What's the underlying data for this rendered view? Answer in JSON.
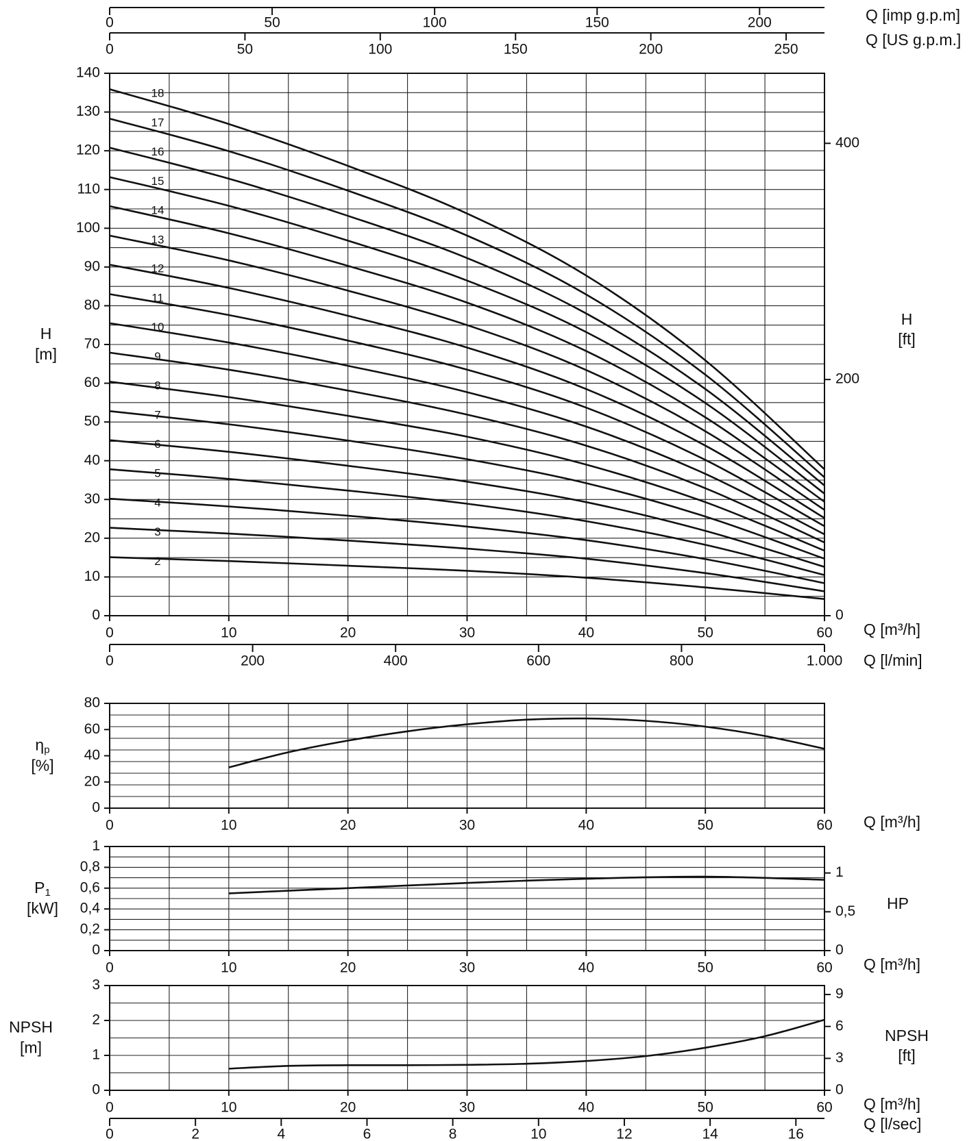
{
  "chart_data": [
    {
      "id": "head",
      "type": "line",
      "x_unit": "Q [m³/h]",
      "xlim": [
        0,
        60
      ],
      "ylim": [
        0,
        140
      ],
      "ylabel_line1": "H",
      "ylabel_line2": "[m]",
      "y2label_line1": "H",
      "y2label_line2": "[ft]",
      "x_ticks": [
        "0",
        "10",
        "20",
        "30",
        "40",
        "50",
        "60"
      ],
      "y_ticks": [
        "0",
        "10",
        "20",
        "30",
        "40",
        "50",
        "60",
        "70",
        "80",
        "90",
        "100",
        "110",
        "120",
        "130",
        "140"
      ],
      "y2_ticks": [
        "0",
        "200",
        "400",
        "600",
        "800"
      ],
      "top_axis_1": {
        "label": "Q [imp g.p.m]",
        "ticks": [
          "0",
          "50",
          "100",
          "150",
          "200"
        ]
      },
      "top_axis_2": {
        "label": "Q [US g.p.m.]",
        "ticks": [
          "0",
          "50",
          "100",
          "150",
          "200",
          "250"
        ]
      },
      "bottom_axis_2": {
        "label": "Q [l/min]",
        "ticks": [
          "0",
          "200",
          "400",
          "600",
          "800",
          "1.000"
        ]
      },
      "x": [
        0,
        10,
        20,
        30,
        40,
        50,
        60
      ],
      "series": [
        {
          "name": "2",
          "values": [
            15.1,
            14.1,
            12.9,
            11.6,
            9.8,
            7.3,
            4.3
          ]
        },
        {
          "name": "3",
          "values": [
            22.7,
            21.2,
            19.4,
            17.3,
            14.7,
            11.0,
            6.3
          ]
        },
        {
          "name": "4",
          "values": [
            30.2,
            28.2,
            25.8,
            23.0,
            19.5,
            14.6,
            8.4
          ]
        },
        {
          "name": "5",
          "values": [
            37.8,
            35.3,
            32.3,
            28.9,
            24.4,
            18.3,
            10.5
          ]
        },
        {
          "name": "6",
          "values": [
            45.3,
            42.3,
            38.7,
            34.6,
            29.3,
            21.9,
            12.6
          ]
        },
        {
          "name": "7",
          "values": [
            52.8,
            49.4,
            45.2,
            40.4,
            34.2,
            25.6,
            14.7
          ]
        },
        {
          "name": "8",
          "values": [
            60.4,
            56.4,
            51.6,
            46.2,
            39.0,
            29.3,
            16.8
          ]
        },
        {
          "name": "9",
          "values": [
            67.9,
            63.5,
            58.1,
            51.9,
            43.9,
            32.9,
            18.9
          ]
        },
        {
          "name": "10",
          "values": [
            75.5,
            70.5,
            64.5,
            57.7,
            48.8,
            36.6,
            21.0
          ]
        },
        {
          "name": "11",
          "values": [
            83.0,
            77.6,
            71.0,
            63.5,
            53.7,
            40.2,
            23.1
          ]
        },
        {
          "name": "12",
          "values": [
            90.6,
            84.6,
            77.4,
            69.2,
            58.5,
            43.9,
            25.2
          ]
        },
        {
          "name": "13",
          "values": [
            98.1,
            91.7,
            83.9,
            75.0,
            63.4,
            47.6,
            27.3
          ]
        },
        {
          "name": "14",
          "values": [
            105.7,
            98.7,
            90.3,
            80.8,
            68.3,
            51.2,
            29.4
          ]
        },
        {
          "name": "15",
          "values": [
            113.2,
            105.8,
            96.8,
            86.5,
            73.2,
            54.9,
            31.5
          ]
        },
        {
          "name": "16",
          "values": [
            120.8,
            112.8,
            103.2,
            92.3,
            78.0,
            58.5,
            33.6
          ]
        },
        {
          "name": "17",
          "values": [
            128.3,
            119.9,
            109.7,
            98.1,
            82.9,
            62.2,
            35.7
          ]
        },
        {
          "name": "18",
          "values": [
            135.9,
            126.9,
            116.1,
            103.8,
            87.8,
            65.9,
            37.8
          ]
        }
      ]
    },
    {
      "id": "efficiency",
      "type": "line",
      "x_unit": "Q [m³/h]",
      "xlim": [
        0,
        60
      ],
      "ylim": [
        0,
        90
      ],
      "ylabel_line1": "ηp",
      "ylabel_line2": "[%]",
      "x_ticks": [
        "0",
        "10",
        "20",
        "30",
        "40",
        "50",
        "60"
      ],
      "y_ticks": [
        "0",
        "20",
        "40",
        "60",
        "80"
      ],
      "series": [
        {
          "x": [
            10,
            15,
            20,
            25,
            30,
            35,
            40,
            45,
            50,
            55,
            60
          ],
          "values": [
            35,
            48,
            58,
            66,
            72,
            76,
            77,
            75,
            70,
            62,
            51
          ]
        }
      ]
    },
    {
      "id": "power",
      "type": "line",
      "x_unit": "Q [m³/h]",
      "xlim": [
        0,
        60
      ],
      "ylim": [
        0,
        1
      ],
      "ylabel_line1": "P1",
      "ylabel_line2": "[kW]",
      "y2label_line1": "HP",
      "x_ticks": [
        "0",
        "10",
        "20",
        "30",
        "40",
        "50",
        "60"
      ],
      "y_ticks": [
        "0",
        "0,2",
        "0,4",
        "0,6",
        "0,8",
        "1"
      ],
      "y2_ticks": [
        "0",
        "0,5",
        "1"
      ],
      "series": [
        {
          "x": [
            10,
            20,
            30,
            40,
            50,
            60
          ],
          "values": [
            0.55,
            0.6,
            0.65,
            0.69,
            0.71,
            0.68
          ]
        }
      ]
    },
    {
      "id": "npsh",
      "type": "line",
      "x_unit": "Q [m³/h]",
      "xlim": [
        0,
        60
      ],
      "ylim": [
        0,
        3
      ],
      "ylabel_line1": "NPSH",
      "ylabel_line2": "[m]",
      "y2label_line1": "NPSH",
      "y2label_line2": "[ft]",
      "x_ticks": [
        "0",
        "10",
        "20",
        "30",
        "40",
        "50",
        "60"
      ],
      "y_ticks": [
        "0",
        "1",
        "2",
        "3"
      ],
      "y2_ticks": [
        "0",
        "3",
        "6",
        "9"
      ],
      "bottom_axis_2": {
        "label": "Q [l/sec]",
        "ticks": [
          "0",
          "2",
          "4",
          "6",
          "8",
          "10",
          "12",
          "14",
          "16"
        ]
      },
      "series": [
        {
          "x": [
            10,
            15,
            20,
            25,
            30,
            35,
            40,
            45,
            50,
            55,
            60
          ],
          "values": [
            0.62,
            0.7,
            0.72,
            0.72,
            0.73,
            0.76,
            0.84,
            0.98,
            1.22,
            1.55,
            2.02
          ]
        }
      ]
    }
  ]
}
